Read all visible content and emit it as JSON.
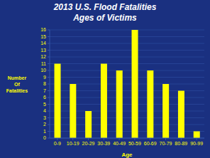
{
  "chart_data": {
    "type": "bar",
    "title": "2013 U.S. Flood Fatalities",
    "subtitle": "Ages of Victims",
    "categories": [
      "0-9",
      "10-19",
      "20-29",
      "30-39",
      "40-49",
      "50-59",
      "60-69",
      "70-79",
      "80-89",
      "90-99"
    ],
    "values": [
      11,
      8,
      4,
      11,
      10,
      16,
      10,
      8,
      7,
      1
    ],
    "color": "#ffff00",
    "xlabel": "Age",
    "ylabel": "Number\nOf\nFatalities",
    "ylim": [
      0,
      16
    ],
    "yticks": [
      0,
      1,
      2,
      3,
      4,
      5,
      6,
      7,
      8,
      9,
      10,
      11,
      12,
      13,
      14,
      15,
      16
    ],
    "grid": true
  }
}
